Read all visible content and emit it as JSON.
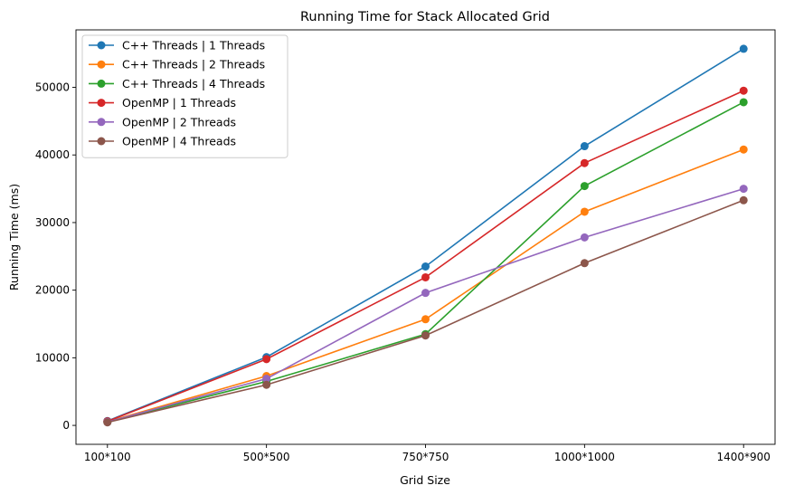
{
  "chart_data": {
    "type": "line",
    "title": "Running Time for Stack Allocated Grid",
    "xlabel": "Grid Size",
    "ylabel": "Running Time (ms)",
    "categories": [
      "100*100",
      "500*500",
      "750*750",
      "1000*1000",
      "1400*900"
    ],
    "ylim": [
      -2800,
      58500
    ],
    "yticks": [
      0,
      10000,
      20000,
      30000,
      40000,
      50000
    ],
    "grid": false,
    "legend_position": "top-left",
    "series": [
      {
        "name": "C++ Threads | 1 Threads",
        "color": "#1f77b4",
        "values": [
          650,
          10100,
          23500,
          41300,
          55700
        ]
      },
      {
        "name": "C++ Threads | 2 Threads",
        "color": "#ff7f0e",
        "values": [
          550,
          7300,
          15700,
          31600,
          40800
        ]
      },
      {
        "name": "C++ Threads | 4 Threads",
        "color": "#2ca02c",
        "values": [
          500,
          6500,
          13500,
          35400,
          47800
        ]
      },
      {
        "name": "OpenMP | 1 Threads",
        "color": "#d62728",
        "values": [
          600,
          9800,
          21900,
          38800,
          49500
        ]
      },
      {
        "name": "OpenMP | 2 Threads",
        "color": "#9467bd",
        "values": [
          500,
          6900,
          19600,
          27800,
          35000
        ]
      },
      {
        "name": "OpenMP | 4 Threads",
        "color": "#8c564b",
        "values": [
          450,
          6000,
          13300,
          24000,
          33300
        ]
      }
    ]
  }
}
